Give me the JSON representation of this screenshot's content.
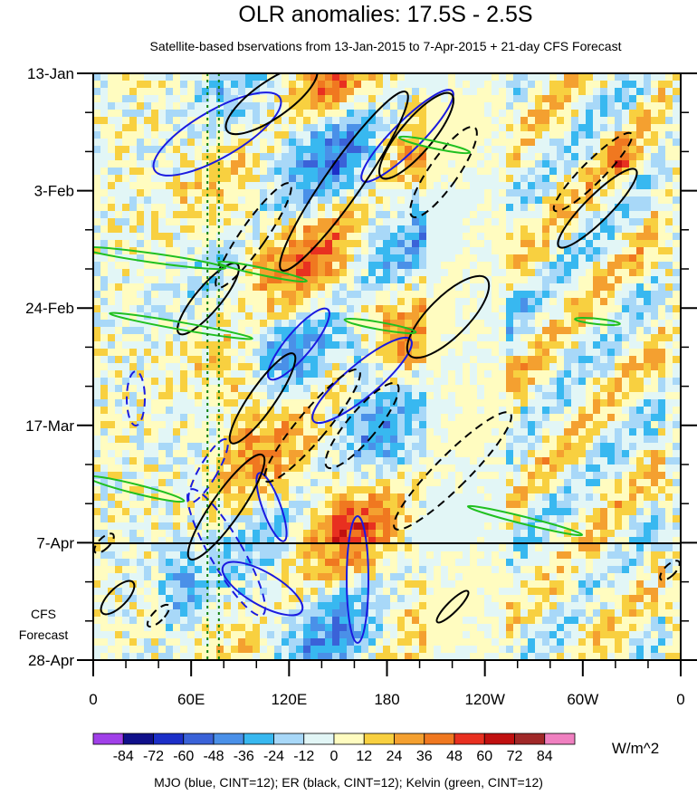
{
  "chart_data": {
    "type": "heatmap",
    "title": "OLR anomalies: 17.5S - 2.5S",
    "subtitle": "Satellite-based bservations from 13-Jan-2015 to 7-Apr-2015 + 21-day CFS Forecast",
    "x_ticks": [
      "0",
      "60E",
      "120E",
      "180",
      "120W",
      "60W",
      "0"
    ],
    "x_tick_lon": [
      0,
      60,
      120,
      180,
      240,
      300,
      360
    ],
    "y_ticks": [
      "13-Jan",
      "3-Feb",
      "24-Feb",
      "17-Mar",
      "7-Apr",
      "28-Apr"
    ],
    "y_tick_day": [
      0,
      21,
      42,
      63,
      84,
      105
    ],
    "observation_end": "7-Apr",
    "forecast_label_1": "CFS",
    "forecast_label_2": "Forecast",
    "colorbar": {
      "labels": [
        "-84",
        "-72",
        "-60",
        "-48",
        "-36",
        "-24",
        "-12",
        "0",
        "12",
        "24",
        "36",
        "48",
        "60",
        "72",
        "84"
      ],
      "colors": [
        "#a040e8",
        "#10108a",
        "#1c2fc8",
        "#3a62d8",
        "#4a90e8",
        "#38b8f0",
        "#a8d8f8",
        "#e2f6f6",
        "#fffcc0",
        "#f8d040",
        "#f4a030",
        "#f07820",
        "#e83020",
        "#c01010",
        "#a02828",
        "#f080c0"
      ],
      "units": "W/m^2"
    },
    "footer": "MJO (blue, CINT=12); ER (black, CINT=12); Kelvin (green, CINT=12)",
    "reference_lines_lon": [
      70,
      77
    ],
    "series": [
      {
        "name": "MJO",
        "color": "#1a1ae0"
      },
      {
        "name": "ER",
        "color": "#000000"
      },
      {
        "name": "Kelvin",
        "color": "#20c020"
      }
    ]
  }
}
